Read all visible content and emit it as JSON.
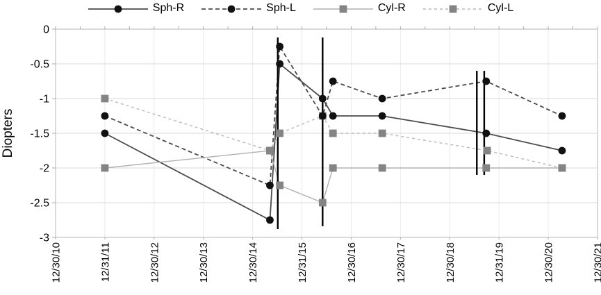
{
  "chart_data": {
    "type": "line",
    "title": "",
    "ylabel": "Diopters",
    "grid": "both-light",
    "legend_position": "top-center",
    "ylim": [
      0,
      -3
    ],
    "y_tick_labels": [
      "0",
      "-0.5",
      "-1",
      "-1.5",
      "-2",
      "-2.5",
      "-3"
    ],
    "y_tick_values": [
      0,
      -0.5,
      -1,
      -1.5,
      -2,
      -2.5,
      -3
    ],
    "x_tick_labels": [
      "12/30/10",
      "12/31/11",
      "12/30/12",
      "12/30/13",
      "12/30/14",
      "12/31/15",
      "12/30/16",
      "12/30/17",
      "12/30/18",
      "12/31/19",
      "12/30/20",
      "12/30/21"
    ],
    "x_axis_note": "x values below are in years after the first tick (12/30/10); data estimated from plotted marker positions",
    "xlim": [
      0,
      11
    ],
    "series": [
      {
        "name": "Sph-R",
        "marker": "circle",
        "line_style": "solid",
        "line_color": "#4a4a4a",
        "marker_color": "#111111",
        "points": [
          [
            1.0,
            -1.5
          ],
          [
            4.35,
            -2.75
          ],
          [
            4.55,
            -0.5
          ],
          [
            5.42,
            -1.0
          ],
          [
            5.63,
            -1.25
          ],
          [
            6.63,
            -1.25
          ],
          [
            8.74,
            -1.5
          ],
          [
            10.28,
            -1.75
          ]
        ]
      },
      {
        "name": "Sph-L",
        "marker": "circle",
        "line_style": "dashed",
        "line_color": "#4a4a4a",
        "marker_color": "#111111",
        "points": [
          [
            1.0,
            -1.25
          ],
          [
            4.35,
            -2.25
          ],
          [
            4.55,
            -0.25
          ],
          [
            5.42,
            -1.25
          ],
          [
            5.63,
            -0.75
          ],
          [
            6.63,
            -1.0
          ],
          [
            8.74,
            -0.75
          ],
          [
            10.28,
            -1.25
          ]
        ]
      },
      {
        "name": "Cyl-R",
        "marker": "square",
        "line_style": "solid",
        "line_color": "#b0b0b0",
        "marker_color": "#848484",
        "points": [
          [
            1.0,
            -2.0
          ],
          [
            4.35,
            -1.75
          ],
          [
            4.55,
            -2.25
          ],
          [
            5.42,
            -2.5
          ],
          [
            5.63,
            -2.0
          ],
          [
            6.63,
            -2.0
          ],
          [
            8.74,
            -2.0
          ],
          [
            10.28,
            -2.0
          ]
        ]
      },
      {
        "name": "Cyl-L",
        "marker": "square",
        "line_style": "dashed",
        "line_color": "#b8b8b8",
        "marker_color": "#848484",
        "points": [
          [
            1.0,
            -1.0
          ],
          [
            4.35,
            -1.75
          ],
          [
            4.55,
            -1.5
          ],
          [
            5.42,
            -1.25
          ],
          [
            5.63,
            -1.5
          ],
          [
            6.63,
            -1.5
          ],
          [
            8.76,
            -1.75
          ],
          [
            10.28,
            -2.0
          ]
        ]
      }
    ],
    "event_lines": [
      {
        "x": 4.51,
        "y_top": -0.12,
        "y_bottom": -2.88
      },
      {
        "x": 5.42,
        "y_top": -0.12,
        "y_bottom": -2.84
      },
      {
        "x": 8.55,
        "y_top": -0.6,
        "y_bottom": -2.1
      },
      {
        "x": 8.7,
        "y_top": -0.6,
        "y_bottom": -2.1
      }
    ],
    "colors": {
      "event_line": "#000000",
      "grid_horizontal": "#d8d8d8",
      "grid_vertical": "#ebebeb",
      "frame": "#c2c2c2",
      "tick": "#a8a8a8",
      "text": "#000000",
      "background": "#ffffff"
    }
  }
}
